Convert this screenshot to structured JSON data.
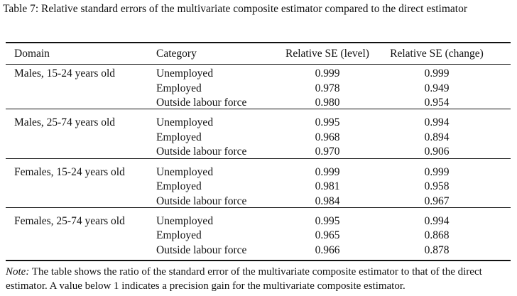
{
  "caption": "Table 7: Relative standard errors of the multivariate composite estimator compared to the direct estimator",
  "table": {
    "header": [
      "Domain",
      "Category",
      "Relative SE (level)",
      "Relative SE (change)"
    ],
    "groups": [
      {
        "domain": "Males, 15-24 years old",
        "rows": [
          {
            "category": "Unemployed",
            "level": "0.999",
            "change": "0.999"
          },
          {
            "category": "Employed",
            "level": "0.978",
            "change": "0.949"
          },
          {
            "category": "Outside labour force",
            "level": "0.980",
            "change": "0.954"
          }
        ]
      },
      {
        "domain": "Males, 25-74 years old",
        "rows": [
          {
            "category": "Unemployed",
            "level": "0.995",
            "change": "0.994"
          },
          {
            "category": "Employed",
            "level": "0.968",
            "change": "0.894"
          },
          {
            "category": "Outside labour force",
            "level": "0.970",
            "change": "0.906"
          }
        ]
      },
      {
        "domain": "Females, 15-24 years old",
        "rows": [
          {
            "category": "Unemployed",
            "level": "0.999",
            "change": "0.999"
          },
          {
            "category": "Employed",
            "level": "0.981",
            "change": "0.958"
          },
          {
            "category": "Outside labour force",
            "level": "0.984",
            "change": "0.967"
          }
        ]
      },
      {
        "domain": "Females, 25-74 years old",
        "rows": [
          {
            "category": "Unemployed",
            "level": "0.995",
            "change": "0.994"
          },
          {
            "category": "Employed",
            "level": "0.965",
            "change": "0.868"
          },
          {
            "category": "Outside labour force",
            "level": "0.966",
            "change": "0.878"
          }
        ]
      }
    ]
  },
  "note": {
    "label": "Note:",
    "text": "The table shows the ratio of the standard error of the multivariate composite estimator to that of the direct estimator. A value below 1 indicates a precision gain for the multivariate composite estimator."
  }
}
